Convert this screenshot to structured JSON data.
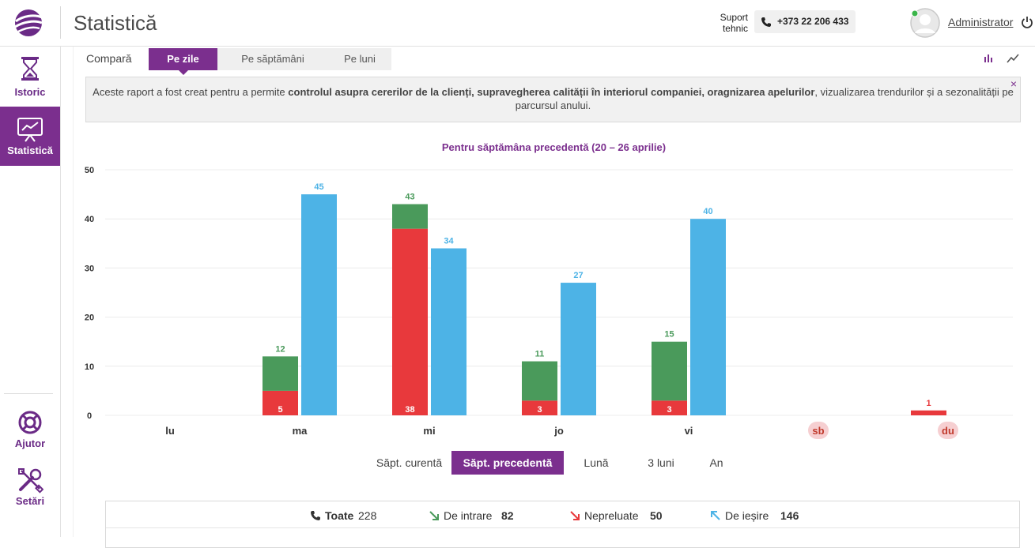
{
  "header": {
    "title": "Statistică",
    "support_label_1": "Suport",
    "support_label_2": "tehnic",
    "phone": "+373 22 206 433",
    "user": "Administrator"
  },
  "sidebar": {
    "items": [
      {
        "label": "Istoric",
        "icon": "hourglass-icon"
      },
      {
        "label": "Statistică",
        "icon": "presentation-chart-icon"
      },
      {
        "label": "Ajutor",
        "icon": "lifebuoy-icon"
      },
      {
        "label": "Setări",
        "icon": "tools-icon"
      }
    ]
  },
  "compare": {
    "label": "Compară",
    "tabs": [
      "Pe zile",
      "Pe săptămâni",
      "Pe luni"
    ],
    "active": "Pe zile"
  },
  "info": {
    "part1": "Aceste raport a fost creat pentru a permite ",
    "bold1": "controlul asupra cererilor de la clienți, supravegherea calității în interiorul companiei, oragnizarea apelurilor",
    "part2": ", vizualizarea trendurilor și a sezonalității pe parcursul anului.",
    "close": "×"
  },
  "chart_data": {
    "type": "bar",
    "title": "Pentru săptămâna precedentă (20 – 26 aprilie)",
    "categories": [
      "lu",
      "ma",
      "mi",
      "jo",
      "vi",
      "sb",
      "du"
    ],
    "weekend": [
      "sb",
      "du"
    ],
    "ylim": [
      0,
      50
    ],
    "yticks": [
      0,
      10,
      20,
      30,
      40,
      50
    ],
    "grid": true,
    "stacked_series": [
      {
        "name": "missed",
        "color": "#e8393c",
        "values": [
          0,
          5,
          38,
          3,
          3,
          0,
          1
        ]
      },
      {
        "name": "incoming",
        "color": "#4a9a5b",
        "values": [
          0,
          7,
          5,
          8,
          12,
          0,
          0
        ]
      }
    ],
    "stack_totals": [
      0,
      12,
      43,
      11,
      15,
      0,
      1
    ],
    "outgoing": {
      "name": "outgoing",
      "color": "#4db3e6",
      "values": [
        0,
        45,
        34,
        27,
        40,
        0,
        0
      ]
    }
  },
  "range": {
    "tabs": [
      "Săpt. curentă",
      "Săpt. precedentă",
      "Lună",
      "3 luni",
      "An"
    ],
    "active": "Săpt. precedentă"
  },
  "summary": {
    "all_label": "Toate",
    "all_value": "228",
    "in_label": "De intrare",
    "in_value": "82",
    "missed_label": "Nepreluate",
    "missed_value": "50",
    "out_label": "De ieșire",
    "out_value": "146"
  },
  "colors": {
    "accent": "#7b2f8e",
    "missed": "#e8393c",
    "incoming": "#4a9a5b",
    "outgoing": "#4db3e6"
  }
}
